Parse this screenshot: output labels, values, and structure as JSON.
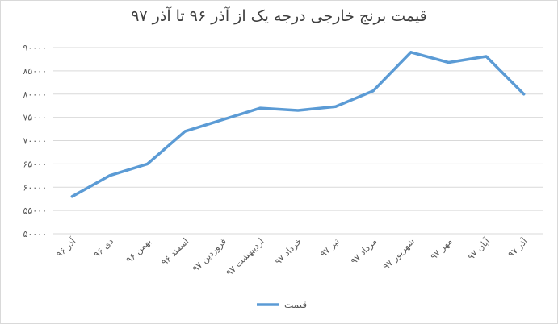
{
  "chart_data": {
    "type": "line",
    "title": "قیمت برنج خارجی درجه یک از آذر ۹۶ تا آذر ۹۷",
    "xlabel": "",
    "ylabel": "",
    "categories": [
      "آذر ۹۶",
      "دی ۹۶",
      "بهمن ۹۶",
      "اسفند ۹۶",
      "فروردین ۹۷",
      "اردیبهشت ۹۷",
      "خرداد ۹۷",
      "تیر ۹۷",
      "مرداد ۹۷",
      "شهریور ۹۷",
      "مهر ۹۷",
      "آبان ۹۷",
      "آذر ۹۷"
    ],
    "series": [
      {
        "name": "قیمت",
        "values": [
          58000,
          62500,
          65000,
          72000,
          74500,
          77000,
          76500,
          77300,
          80700,
          89000,
          86800,
          88100,
          80000
        ],
        "color": "#5b9bd5"
      }
    ],
    "yticks": [
      "۵۰۰۰۰",
      "۵۵۰۰۰",
      "۶۰۰۰۰",
      "۶۵۰۰۰",
      "۷۰۰۰۰",
      "۷۵۰۰۰",
      "۸۰۰۰۰",
      "۸۵۰۰۰",
      "۹۰۰۰۰"
    ],
    "ylim": [
      50000,
      90000
    ],
    "ystep": 5000,
    "grid": true,
    "legend": "bottom"
  }
}
